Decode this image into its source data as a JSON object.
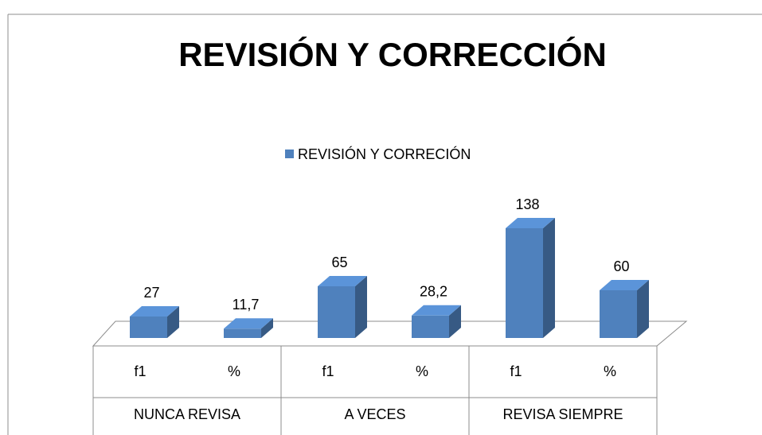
{
  "chart_data": {
    "type": "bar3d",
    "title": "REVISIÓN Y CORRECCIÓN",
    "categories": [
      "f1",
      "%",
      "f1",
      "%",
      "f1",
      "%"
    ],
    "groups": [
      "NUNCA REVISA",
      "A VECES",
      "REVISA SIEMPRE"
    ],
    "series": [
      {
        "name": "REVISIÓN Y CORRECIÓN",
        "color": "#4f81bd",
        "values": [
          27,
          11.7,
          65,
          28.2,
          138,
          60
        ],
        "value_labels": [
          "27",
          "11,7",
          "65",
          "28,2",
          "138",
          "60"
        ]
      }
    ],
    "legend": "top"
  }
}
